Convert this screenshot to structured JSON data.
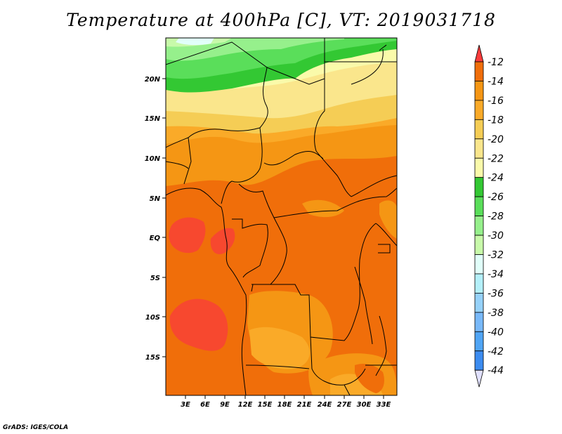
{
  "title": "Temperature at 400hPa [C], VT: 2019031718",
  "credit": "GrADS: IGES/COLA",
  "map": {
    "lat_labels": [
      "20N",
      "15N",
      "10N",
      "5N",
      "EQ",
      "5S",
      "10S",
      "15S"
    ],
    "lon_labels": [
      "3E",
      "6E",
      "9E",
      "12E",
      "15E",
      "18E",
      "21E",
      "24E",
      "27E",
      "30E",
      "33E"
    ],
    "region": "Central Africa"
  },
  "colorbar": {
    "labels": [
      "-12",
      "-14",
      "-16",
      "-18",
      "-20",
      "-22",
      "-24",
      "-26",
      "-28",
      "-30",
      "-32",
      "-34",
      "-36",
      "-38",
      "-40",
      "-42",
      "-44"
    ],
    "colors": [
      "#fa3c3c",
      "#f06e0a",
      "#f59614",
      "#faaa28",
      "#f5cd55",
      "#fae68c",
      "#fafaaa",
      "#33c833",
      "#5ade5a",
      "#96f08c",
      "#c8faaa",
      "#e1fffa",
      "#b4f0fa",
      "#96d2fa",
      "#78b9fa",
      "#50a5f5",
      "#3c8cf0",
      "#1e6ee6",
      "#1450d2",
      "#0a32b4",
      "#0a148c",
      "#e1e1ff"
    ]
  },
  "chart_data": {
    "type": "heatmap",
    "title": "Temperature at 400hPa [C], VT: 2019031718",
    "variable": "Temperature",
    "units": "C",
    "level": "400hPa",
    "valid_time": "2019031718",
    "lon_range": [
      "0E",
      "35E"
    ],
    "lat_range": [
      "20S",
      "24N"
    ],
    "levels": [
      -12,
      -14,
      -16,
      -18,
      -20,
      -22,
      -24,
      -26,
      -28,
      -30,
      -32,
      -34,
      -36,
      -38,
      -40,
      -42,
      -44
    ],
    "fields": [
      {
        "region": "far north (Sahara, ~21-24N)",
        "value_range": [
          -26,
          -22
        ]
      },
      {
        "region": "northern band (~16-20N)",
        "value_range": [
          -22,
          -20
        ]
      },
      {
        "region": "Sahel (~10-15N)",
        "value_range": [
          -20,
          -16
        ]
      },
      {
        "region": "central Africa",
        "value_range": [
          -16,
          -14
        ]
      },
      {
        "region": "Gabon / Atlantic coast",
        "value_range": [
          -14,
          -12
        ]
      },
      {
        "region": "Angola interior (~10-15S)",
        "value_range": [
          -14,
          -12
        ]
      },
      {
        "region": "southern Zambia (~17S)",
        "value_range": [
          -18,
          -16
        ]
      }
    ]
  }
}
